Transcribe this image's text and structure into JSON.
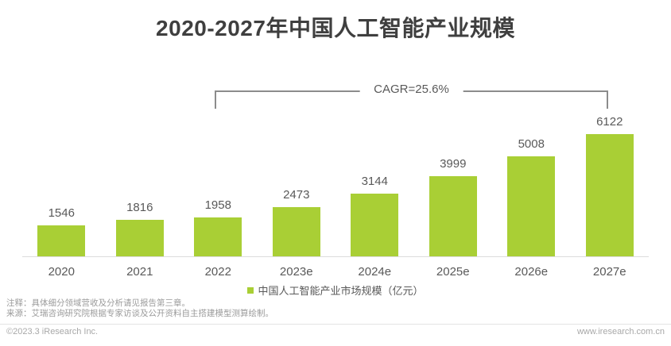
{
  "title": "2020-2027年中国人工智能产业规模",
  "cagr": {
    "label": "CAGR=25.6%"
  },
  "legend": {
    "label": "中国人工智能产业市场规模（亿元）"
  },
  "notes": {
    "line1": "注释：具体细分领域营收及分析请见报告第三章。",
    "line2": "来源：艾瑞咨询研究院根据专家访谈及公开资料自主搭建模型测算绘制。"
  },
  "footer": {
    "copyright": "©2023.3 iResearch Inc.",
    "website": "www.iresearch.com.cn"
  },
  "colors": {
    "bar": "#a9cf35",
    "title_text": "#3f3f3f",
    "label_text": "#595959",
    "note_text": "#9b9b9b",
    "axis_line": "#dcdcdc",
    "bracket": "#8c8c8c"
  },
  "chart_data": {
    "type": "bar",
    "title": "2020-2027年中国人工智能产业规模",
    "categories": [
      "2020",
      "2021",
      "2022",
      "2023e",
      "2024e",
      "2025e",
      "2026e",
      "2027e"
    ],
    "values": [
      1546,
      1816,
      1958,
      2473,
      3144,
      3999,
      5008,
      6122
    ],
    "series_name": "中国人工智能产业市场规模（亿元）",
    "xlabel": "",
    "ylabel": "",
    "ylim": [
      0,
      6500
    ],
    "grid": false,
    "data_labels": true,
    "legend_position": "bottom",
    "annotation": {
      "text": "CAGR=25.6%",
      "span_categories": [
        "2022",
        "2027e"
      ]
    }
  }
}
